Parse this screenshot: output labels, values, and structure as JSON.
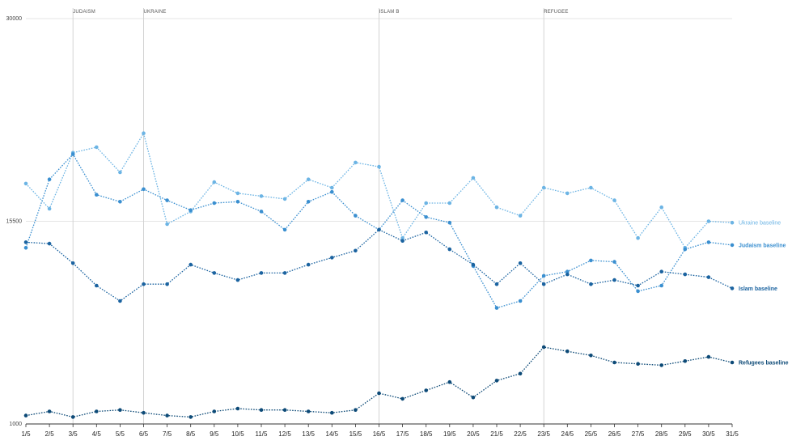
{
  "chart_data": {
    "type": "line",
    "ylim": [
      1000,
      30000
    ],
    "y_ticks": [
      "1000",
      "15500",
      "30000"
    ],
    "y_tick_values": [
      1000,
      15500,
      30000
    ],
    "grid": "horizontal at y ticks",
    "categories": [
      "1/5",
      "2/5",
      "3/5",
      "4/5",
      "5/5",
      "6/5",
      "7/5",
      "8/5",
      "9/5",
      "10/5",
      "11/5",
      "12/5",
      "13/5",
      "14/5",
      "15/5",
      "16/5",
      "17/5",
      "18/5",
      "19/5",
      "20/5",
      "21/5",
      "22/5",
      "23/5",
      "24/5",
      "25/5",
      "26/5",
      "27/5",
      "28/5",
      "29/5",
      "30/5",
      "31/5"
    ],
    "annotations": [
      {
        "label": "JUDAISM",
        "at": "3/5"
      },
      {
        "label": "UKRAINE",
        "at": "6/5"
      },
      {
        "label": "ISLAM B",
        "at": "16/5"
      },
      {
        "label": "REFUGEE",
        "at": "23/5"
      }
    ],
    "series": [
      {
        "name": "Ukraine baseline",
        "color": "#6cb4e4",
        "bold": false,
        "values": [
          18200,
          16400,
          20400,
          20800,
          19000,
          21800,
          15300,
          16200,
          18300,
          17500,
          17300,
          17100,
          18500,
          17900,
          19700,
          19400,
          14300,
          16800,
          16800,
          18600,
          16500,
          15900,
          17900,
          17500,
          17900,
          17000,
          14300,
          16500,
          13600,
          15500,
          15400
        ]
      },
      {
        "name": "Judaism baseline",
        "color": "#3a8fd0",
        "bold": true,
        "values": [
          13600,
          18500,
          20300,
          17400,
          16900,
          17800,
          17000,
          16300,
          16800,
          16900,
          16200,
          14900,
          16900,
          17600,
          15900,
          14900,
          17000,
          15800,
          15400,
          12300,
          9300,
          9800,
          11600,
          11900,
          12700,
          12600,
          10500,
          10900,
          13500,
          14000,
          13800
        ]
      },
      {
        "name": "Islam baseline",
        "color": "#1b63a0",
        "bold": true,
        "values": [
          14000,
          13900,
          12500,
          10900,
          9800,
          11000,
          11000,
          12400,
          11800,
          11300,
          11800,
          11800,
          12400,
          12900,
          13400,
          14900,
          14100,
          14700,
          13500,
          12400,
          11000,
          12500,
          11000,
          11700,
          11000,
          11300,
          10900,
          11900,
          11700,
          11500,
          10700
        ]
      },
      {
        "name": "Refugees baseline",
        "color": "#0d4a77",
        "bold": true,
        "values": [
          1600,
          1900,
          1500,
          1900,
          2000,
          1800,
          1600,
          1500,
          1900,
          2100,
          2000,
          2000,
          1900,
          1800,
          2000,
          3200,
          2800,
          3400,
          4000,
          2900,
          4100,
          4600,
          6500,
          6200,
          5900,
          5400,
          5300,
          5200,
          5500,
          5800,
          5400
        ]
      }
    ]
  }
}
